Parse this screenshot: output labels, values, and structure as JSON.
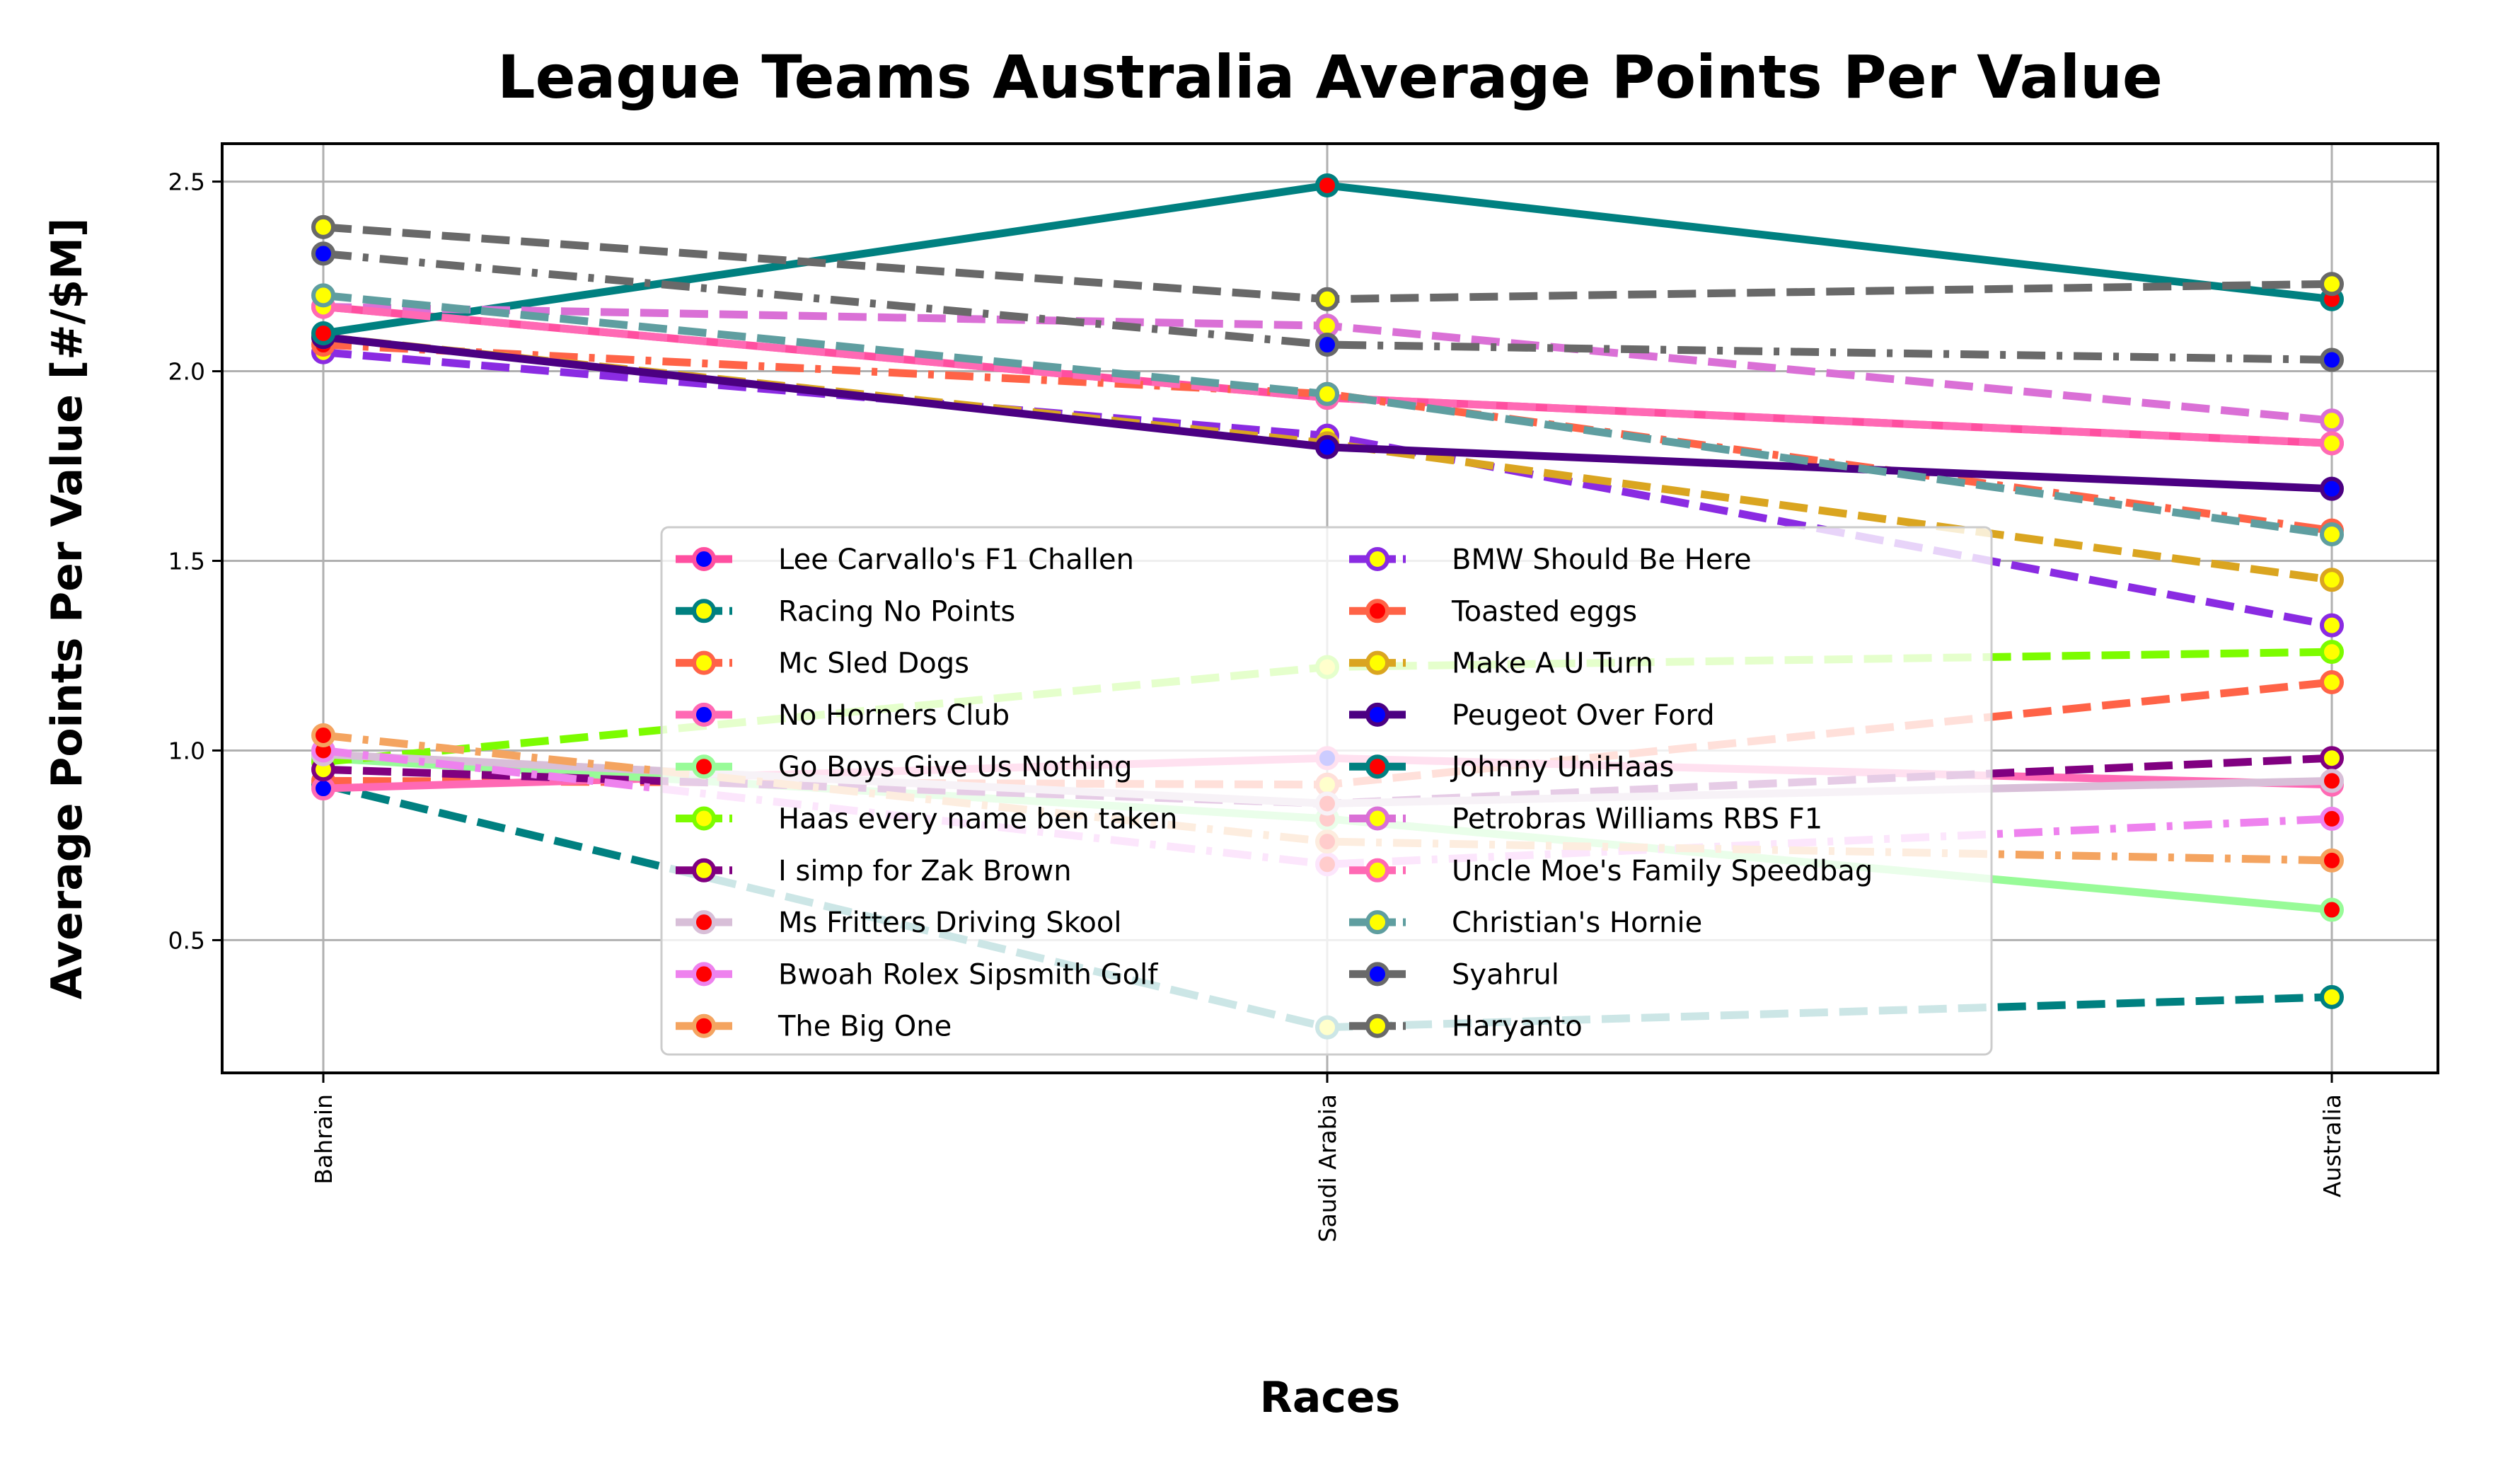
{
  "chart_data": {
    "type": "line",
    "title": "League Teams Australia Average Points Per Value",
    "xlabel": "Races",
    "ylabel": "Average Points Per Value [#/$M]",
    "categories": [
      "Bahrain",
      "Saudi Arabia",
      "Australia"
    ],
    "ylim": [
      0.15,
      2.6
    ],
    "yticks": [
      "0.5",
      "1.0",
      "1.5",
      "2.0",
      "2.5"
    ],
    "grid": true,
    "legend_position": "lower center",
    "legend_columns": 2,
    "series": [
      {
        "name": "Lee Carvallo's F1 Challen",
        "values": [
          2.17,
          1.93,
          1.81
        ],
        "color": "#ff4fa0",
        "dash": "solid",
        "marker_face": "#0000ff"
      },
      {
        "name": "Racing No Points",
        "values": [
          0.91,
          0.27,
          0.35
        ],
        "color": "#008080",
        "dash": "dashed",
        "marker_face": "#ffff00"
      },
      {
        "name": "Mc Sled Dogs",
        "values": [
          0.92,
          0.91,
          1.18
        ],
        "color": "#ff6347",
        "dash": "dashed",
        "marker_face": "#ffff00"
      },
      {
        "name": "No Horners Club",
        "values": [
          0.9,
          0.98,
          0.91
        ],
        "color": "#ff69b4",
        "dash": "solid",
        "marker_face": "#0000ff"
      },
      {
        "name": "Go Boys Give Us Nothing",
        "values": [
          0.98,
          0.82,
          0.58
        ],
        "color": "#98fb98",
        "dash": "solid",
        "marker_face": "#ff0000"
      },
      {
        "name": "Haas every name ben taken",
        "values": [
          0.97,
          1.22,
          1.26
        ],
        "color": "#7cfc00",
        "dash": "dashed",
        "marker_face": "#ffff00"
      },
      {
        "name": "I simp for Zak Brown",
        "values": [
          0.95,
          0.86,
          0.98
        ],
        "color": "#800080",
        "dash": "dashed",
        "marker_face": "#ffff00"
      },
      {
        "name": "Ms Fritters Driving Skool",
        "values": [
          0.99,
          0.86,
          0.92
        ],
        "color": "#d8bfd8",
        "dash": "solid",
        "marker_face": "#ff0000"
      },
      {
        "name": "Bwoah Rolex Sipsmith Golf",
        "values": [
          1.0,
          0.7,
          0.82
        ],
        "color": "#ee82ee",
        "dash": "dashdot",
        "marker_face": "#ff0000"
      },
      {
        "name": "The Big One",
        "values": [
          1.04,
          0.76,
          0.71
        ],
        "color": "#f4a460",
        "dash": "dashdot",
        "marker_face": "#ff0000"
      },
      {
        "name": "BMW Should Be Here",
        "values": [
          2.05,
          1.83,
          1.33
        ],
        "color": "#8a2be2",
        "dash": "dashed",
        "marker_face": "#ffff00"
      },
      {
        "name": "Toasted eggs",
        "values": [
          2.07,
          1.94,
          1.58
        ],
        "color": "#ff6347",
        "dash": "dashdot",
        "marker_face": "#ff0000"
      },
      {
        "name": "Make A U Turn",
        "values": [
          2.09,
          1.81,
          1.45
        ],
        "color": "#daa520",
        "dash": "dashed",
        "marker_face": "#ffff00"
      },
      {
        "name": "Peugeot Over Ford",
        "values": [
          2.09,
          1.8,
          1.69
        ],
        "color": "#4b0082",
        "dash": "solid",
        "marker_face": "#0000ff"
      },
      {
        "name": "Johnny UniHaas",
        "values": [
          2.1,
          2.49,
          2.19
        ],
        "color": "#008080",
        "dash": "solid",
        "marker_face": "#ff0000"
      },
      {
        "name": "Petrobras Williams RBS F1",
        "values": [
          2.17,
          2.12,
          1.87
        ],
        "color": "#da70d6",
        "dash": "dashed",
        "marker_face": "#ffff00"
      },
      {
        "name": "Uncle Moe's Family Speedbag",
        "values": [
          2.17,
          1.93,
          1.81
        ],
        "color": "#ff69b4",
        "dash": "dashed",
        "marker_face": "#ffff00"
      },
      {
        "name": "Christian's Hornie",
        "values": [
          2.2,
          1.94,
          1.57
        ],
        "color": "#5f9ea0",
        "dash": "dashed",
        "marker_face": "#ffff00"
      },
      {
        "name": "Syahrul",
        "values": [
          2.31,
          2.07,
          2.03
        ],
        "color": "#696969",
        "dash": "dashdot",
        "marker_face": "#0000ff"
      },
      {
        "name": "Haryanto",
        "values": [
          2.38,
          2.19,
          2.23
        ],
        "color": "#696969",
        "dash": "dashed",
        "marker_face": "#ffff00"
      }
    ]
  }
}
